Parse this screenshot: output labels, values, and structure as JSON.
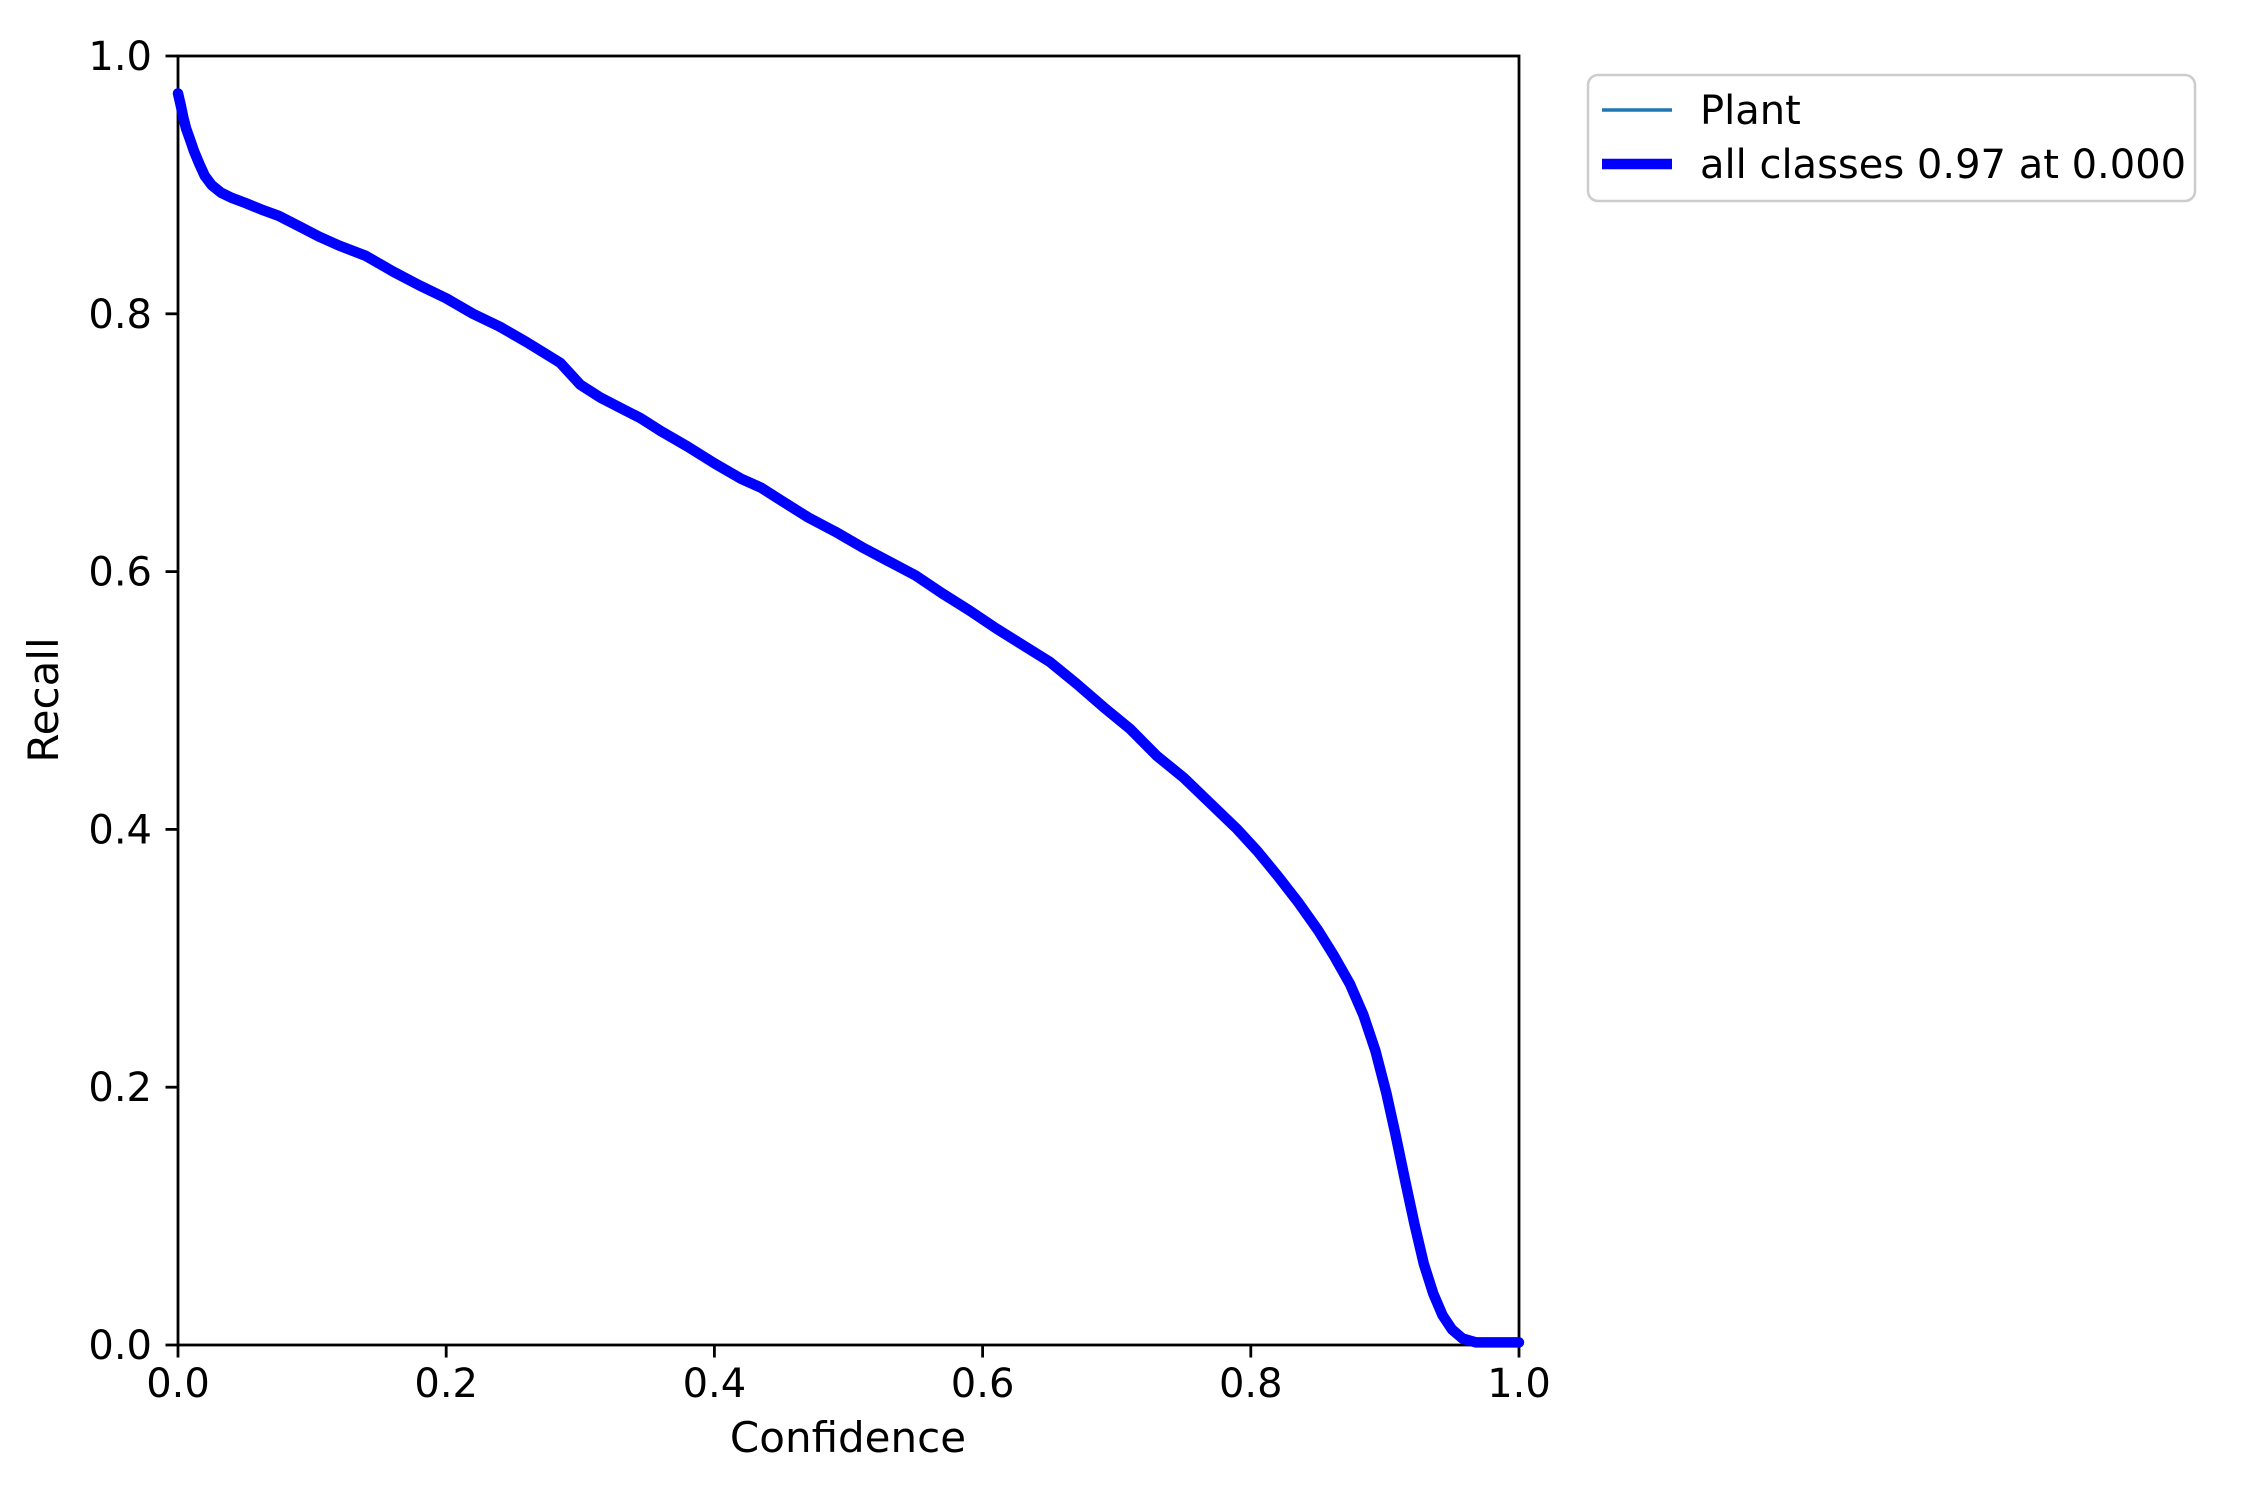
{
  "figure": {
    "background": "#ffffff",
    "text_color": "#000000",
    "spine_color": "#000000"
  },
  "chart_data": {
    "type": "line",
    "title": "",
    "xlabel": "Confidence",
    "ylabel": "Recall",
    "xlim": [
      0.0,
      1.0
    ],
    "ylim": [
      0.0,
      1.0
    ],
    "x_tick_labels": [
      "0.0",
      "0.2",
      "0.4",
      "0.6",
      "0.8",
      "1.0"
    ],
    "y_tick_labels": [
      "0.0",
      "0.2",
      "0.4",
      "0.6",
      "0.8",
      "1.0"
    ],
    "grid": false,
    "legend_position": "upper-right-outside",
    "x": [
      0.0,
      0.002,
      0.004,
      0.006,
      0.009,
      0.012,
      0.016,
      0.02,
      0.025,
      0.032,
      0.04,
      0.05,
      0.062,
      0.075,
      0.09,
      0.105,
      0.12,
      0.14,
      0.16,
      0.18,
      0.2,
      0.22,
      0.24,
      0.26,
      0.285,
      0.3,
      0.315,
      0.33,
      0.345,
      0.36,
      0.38,
      0.4,
      0.42,
      0.435,
      0.45,
      0.47,
      0.49,
      0.51,
      0.53,
      0.55,
      0.57,
      0.59,
      0.61,
      0.63,
      0.65,
      0.67,
      0.69,
      0.71,
      0.73,
      0.75,
      0.77,
      0.79,
      0.805,
      0.82,
      0.835,
      0.85,
      0.862,
      0.874,
      0.884,
      0.893,
      0.901,
      0.908,
      0.915,
      0.922,
      0.929,
      0.936,
      0.943,
      0.95,
      0.958,
      0.968,
      1.0
    ],
    "series": [
      {
        "name": "Plant",
        "color": "#1f77b4",
        "stroke_width_px": 3.5,
        "y": [
          0.971,
          0.962,
          0.952,
          0.944,
          0.935,
          0.926,
          0.916,
          0.907,
          0.9,
          0.894,
          0.89,
          0.886,
          0.881,
          0.876,
          0.868,
          0.86,
          0.853,
          0.845,
          0.833,
          0.822,
          0.812,
          0.8,
          0.79,
          0.778,
          0.762,
          0.745,
          0.735,
          0.727,
          0.719,
          0.709,
          0.697,
          0.684,
          0.672,
          0.665,
          0.655,
          0.642,
          0.631,
          0.619,
          0.608,
          0.597,
          0.583,
          0.57,
          0.556,
          0.543,
          0.53,
          0.513,
          0.495,
          0.478,
          0.457,
          0.44,
          0.42,
          0.4,
          0.383,
          0.364,
          0.344,
          0.322,
          0.302,
          0.28,
          0.256,
          0.228,
          0.196,
          0.163,
          0.128,
          0.094,
          0.063,
          0.04,
          0.023,
          0.012,
          0.005,
          0.002,
          0.002
        ]
      },
      {
        "name": "all classes 0.97 at 0.000",
        "color": "#0000ff",
        "stroke_width_px": 10.5,
        "y": [
          0.971,
          0.962,
          0.952,
          0.944,
          0.935,
          0.926,
          0.916,
          0.907,
          0.9,
          0.894,
          0.89,
          0.886,
          0.881,
          0.876,
          0.868,
          0.86,
          0.853,
          0.845,
          0.833,
          0.822,
          0.812,
          0.8,
          0.79,
          0.778,
          0.762,
          0.745,
          0.735,
          0.727,
          0.719,
          0.709,
          0.697,
          0.684,
          0.672,
          0.665,
          0.655,
          0.642,
          0.631,
          0.619,
          0.608,
          0.597,
          0.583,
          0.57,
          0.556,
          0.543,
          0.53,
          0.513,
          0.495,
          0.478,
          0.457,
          0.44,
          0.42,
          0.4,
          0.383,
          0.364,
          0.344,
          0.322,
          0.302,
          0.28,
          0.256,
          0.228,
          0.196,
          0.163,
          0.128,
          0.094,
          0.063,
          0.04,
          0.023,
          0.012,
          0.005,
          0.002,
          0.002
        ]
      }
    ]
  },
  "legend": {
    "border_color": "#cccccc",
    "fill_color": "#ffffff",
    "entries": [
      {
        "label": "Plant",
        "swatch_color": "#1f77b4",
        "swatch_thickness": "thin"
      },
      {
        "label": "all classes 0.97 at 0.000",
        "swatch_color": "#0000ff",
        "swatch_thickness": "thick"
      }
    ]
  }
}
